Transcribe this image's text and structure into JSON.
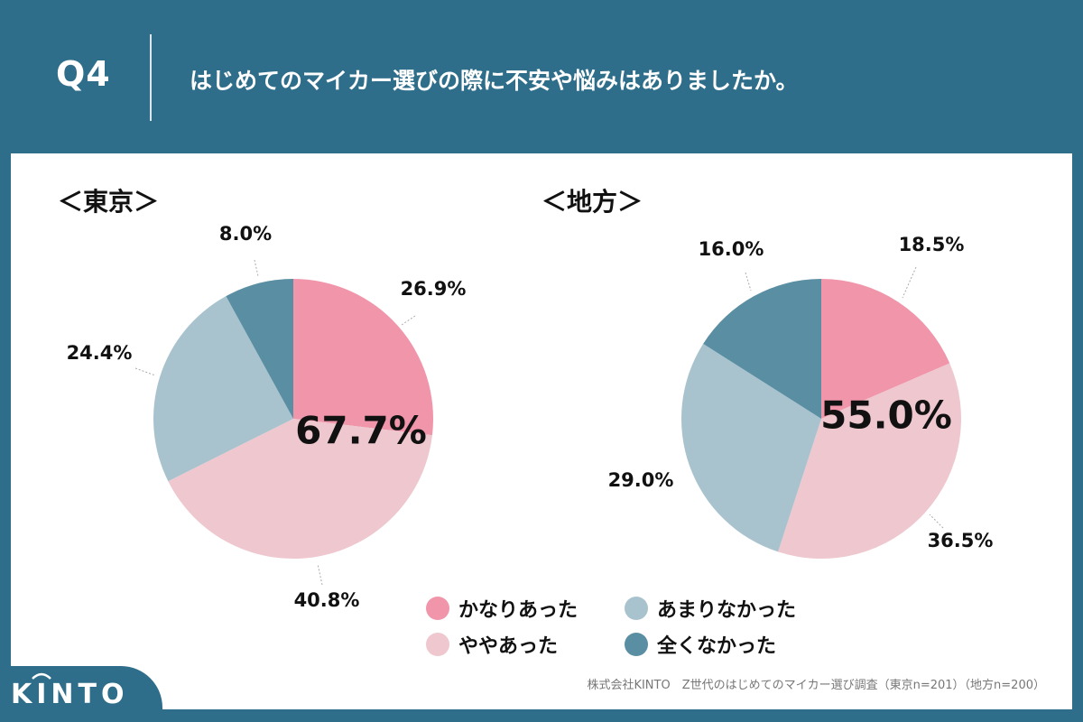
{
  "header": {
    "q_label": "Q4",
    "question": "はじめてのマイカー選びの際に不安や悩みはありましたか。"
  },
  "colors": {
    "background": "#2f6e8a",
    "card": "#ffffff",
    "kanari": "#f095aa",
    "yaya": "#eec7cf",
    "amari": "#a9c3ce",
    "mattaku": "#5a8ea3"
  },
  "chart_data": [
    {
      "type": "pie",
      "title": "＜東京＞",
      "categories": [
        "かなりあった",
        "ややあった",
        "あまりなかった",
        "全くなかった"
      ],
      "values": [
        26.9,
        40.8,
        24.4,
        8.0
      ],
      "value_labels": [
        "26.9%",
        "40.8%",
        "24.4%",
        "8.0%"
      ],
      "center_label": "67.7%"
    },
    {
      "type": "pie",
      "title": "＜地方＞",
      "categories": [
        "かなりあった",
        "ややあった",
        "あまりなかった",
        "全くなかった"
      ],
      "values": [
        18.5,
        36.5,
        29.0,
        16.0
      ],
      "value_labels": [
        "18.5%",
        "36.5%",
        "29.0%",
        "16.0%"
      ],
      "center_label": "55.0%"
    }
  ],
  "legend": [
    {
      "label": "かなりあった",
      "color": "#f095aa"
    },
    {
      "label": "あまりなかった",
      "color": "#a9c3ce"
    },
    {
      "label": "ややあった",
      "color": "#eec7cf"
    },
    {
      "label": "全くなかった",
      "color": "#5a8ea3"
    }
  ],
  "footer": {
    "source": "株式会社KINTO　Z世代のはじめてのマイカー選び調査（東京n=201）（地方n=200）",
    "logo": "KINTO"
  }
}
